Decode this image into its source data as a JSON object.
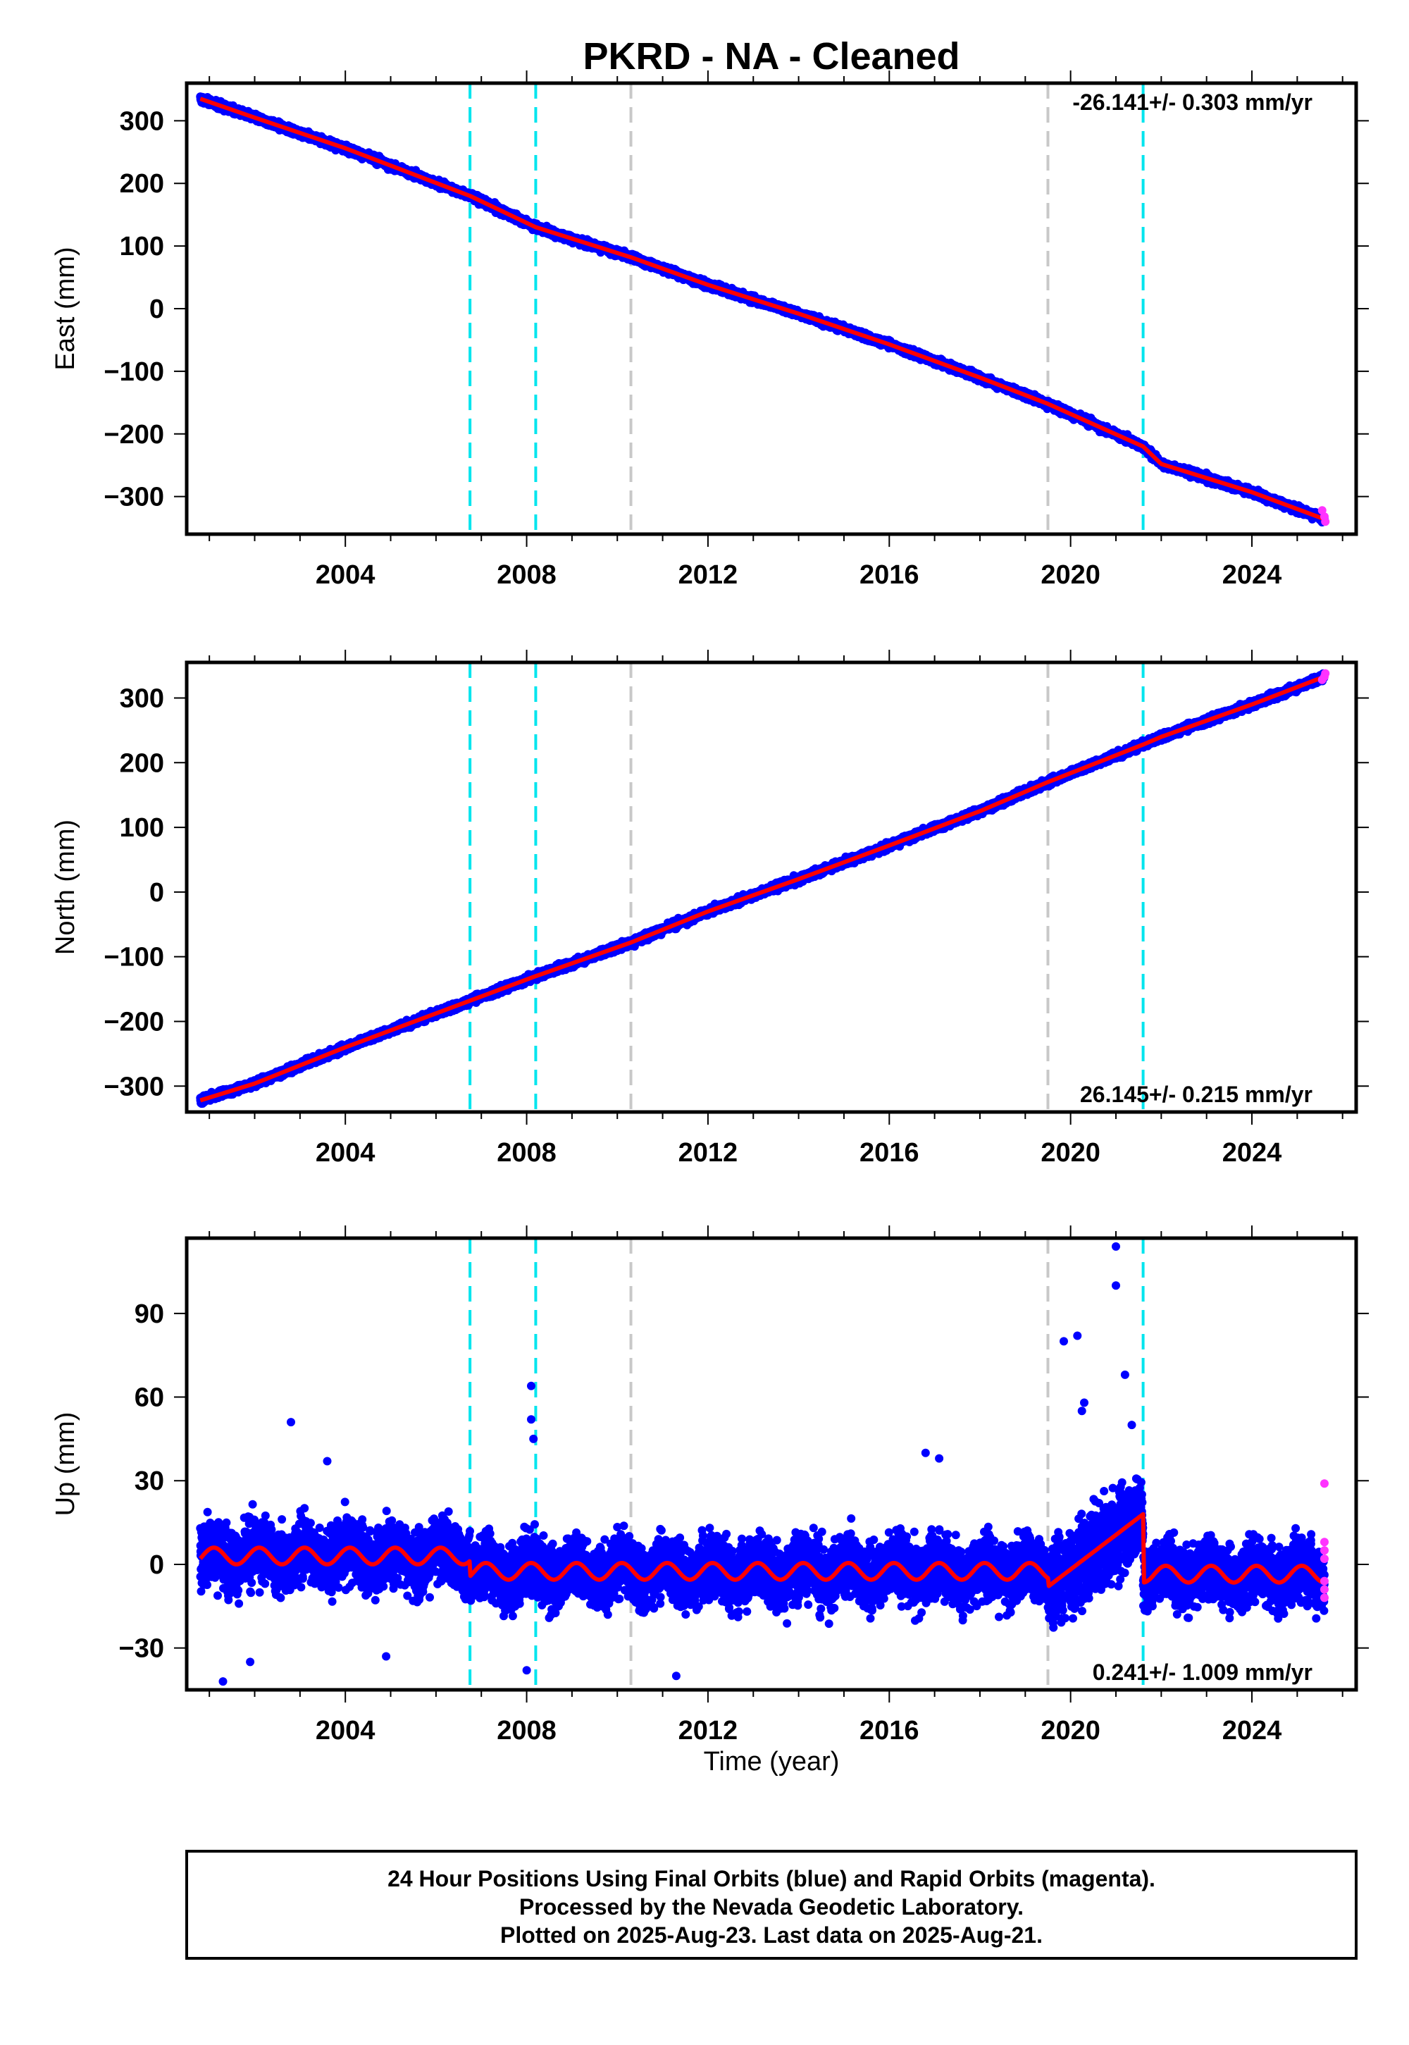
{
  "title": "PKRD  - NA - Cleaned",
  "colors": {
    "final_orbits": "#0000ff",
    "rapid_orbits": "#ff33ff",
    "model": "#ff0000",
    "equipment_change": "#00e5ee",
    "other_event": "#c8c8c8"
  },
  "chart_data": [
    {
      "type": "scatter",
      "ylabel": "East (mm)",
      "xlim": [
        2000.5,
        2026.3
      ],
      "ylim": [
        -360,
        360
      ],
      "x_ticks": [
        2004,
        2008,
        2012,
        2016,
        2020,
        2024
      ],
      "x_tick_labels": [
        "2004",
        "2008",
        "2012",
        "2016",
        "2020",
        "2024"
      ],
      "y_ticks": [
        -300,
        -200,
        -100,
        0,
        100,
        200,
        300
      ],
      "y_tick_labels": [
        "−300",
        "−200",
        "−100",
        "0",
        "100",
        "200",
        "300"
      ],
      "rate_label": "-26.141+/- 0.303 mm/yr",
      "rate_position": "top-right",
      "trend": {
        "start": [
          2000.8,
          335
        ],
        "end": [
          2025.6,
          -336
        ]
      },
      "series": [
        {
          "kind": "model",
          "x": [
            2000.8,
            2002,
            2004,
            2006.75,
            2008.2,
            2010.3,
            2012,
            2014,
            2016,
            2018,
            2019.5,
            2021.6,
            2022,
            2024,
            2025.6
          ],
          "y": [
            335,
            305,
            256,
            180,
            130,
            82,
            38,
            -8,
            -57,
            -110,
            -152,
            -220,
            -248,
            -293,
            -336
          ]
        },
        {
          "kind": "rapid",
          "x": [
            2025.55,
            2025.6,
            2025.62
          ],
          "y": [
            -322,
            -332,
            -340
          ]
        }
      ]
    },
    {
      "type": "scatter",
      "ylabel": "North (mm)",
      "xlim": [
        2000.5,
        2026.3
      ],
      "ylim": [
        -340,
        355
      ],
      "x_ticks": [
        2004,
        2008,
        2012,
        2016,
        2020,
        2024
      ],
      "x_tick_labels": [
        "2004",
        "2008",
        "2012",
        "2016",
        "2020",
        "2024"
      ],
      "y_ticks": [
        -300,
        -200,
        -100,
        0,
        100,
        200,
        300
      ],
      "y_tick_labels": [
        "−300",
        "−200",
        "−100",
        "0",
        "100",
        "200",
        "300"
      ],
      "rate_label": "26.145+/- 0.215 mm/yr",
      "rate_position": "bottom-right",
      "trend": {
        "start": [
          2000.8,
          -322
        ],
        "end": [
          2025.6,
          333
        ]
      },
      "series": [
        {
          "kind": "model",
          "x": [
            2000.8,
            2002,
            2004,
            2006.75,
            2008.2,
            2010.3,
            2012,
            2014,
            2016,
            2018,
            2019.5,
            2021.6,
            2022,
            2024,
            2025.6
          ],
          "y": [
            -322,
            -296,
            -240,
            -168,
            -130,
            -78,
            -30,
            20,
            72,
            125,
            170,
            228,
            240,
            290,
            333
          ]
        },
        {
          "kind": "rapid",
          "x": [
            2025.55,
            2025.6,
            2025.62
          ],
          "y": [
            328,
            333,
            338
          ]
        }
      ]
    },
    {
      "type": "scatter",
      "ylabel": "Up (mm)",
      "xlabel": "Time (year)",
      "xlim": [
        2000.5,
        2026.3
      ],
      "ylim": [
        -45,
        117
      ],
      "x_ticks": [
        2004,
        2008,
        2012,
        2016,
        2020,
        2024
      ],
      "x_tick_labels": [
        "2004",
        "2008",
        "2012",
        "2016",
        "2020",
        "2024"
      ],
      "y_ticks": [
        -30,
        0,
        30,
        60,
        90
      ],
      "y_tick_labels": [
        "−30",
        "0",
        "30",
        "60",
        "90"
      ],
      "rate_label": "0.241+/- 1.009 mm/yr",
      "rate_position": "bottom-right",
      "model_segments": [
        {
          "from": 2000.8,
          "to": 2006.75,
          "offset": 3,
          "amplitude": 3
        },
        {
          "from": 2006.75,
          "to": 2019.5,
          "offset": -2.5,
          "amplitude": 3
        },
        {
          "from": 2019.5,
          "to": 2021.6,
          "offset": 10,
          "amplitude": 4,
          "note": "transient"
        },
        {
          "from": 2021.6,
          "to": 2025.6,
          "offset": -3.5,
          "amplitude": 3
        }
      ],
      "outliers": [
        [
          2002.8,
          51
        ],
        [
          2008.1,
          64
        ],
        [
          2008.1,
          52
        ],
        [
          2008.15,
          45
        ],
        [
          2019.85,
          80
        ],
        [
          2020.15,
          82
        ],
        [
          2020.3,
          58
        ],
        [
          2020.25,
          55
        ],
        [
          2021.0,
          114
        ],
        [
          2021.0,
          100
        ],
        [
          2021.2,
          68
        ],
        [
          2021.35,
          50
        ],
        [
          2016.8,
          40
        ],
        [
          2017.1,
          38
        ],
        [
          2003.6,
          37
        ],
        [
          2001.3,
          -42
        ],
        [
          2008.0,
          -38
        ],
        [
          2011.3,
          -40
        ],
        [
          2001.9,
          -35
        ],
        [
          2004.9,
          -33
        ]
      ],
      "series": [
        {
          "kind": "rapid",
          "x": [
            2025.6,
            2025.6,
            2025.6,
            2025.6,
            2025.6,
            2025.6,
            2025.6
          ],
          "y": [
            29,
            8,
            5,
            2,
            -6,
            -9,
            -12
          ]
        }
      ]
    }
  ],
  "events": {
    "equipment_change": [
      2006.75,
      2008.2,
      2021.6
    ],
    "other": [
      2010.3,
      2019.5
    ]
  },
  "footer": {
    "line1": "24 Hour Positions Using Final Orbits (blue) and Rapid Orbits (magenta).",
    "line2": "Processed by the Nevada Geodetic Laboratory.",
    "line3": "Plotted on 2025-Aug-23. Last data on 2025-Aug-21."
  }
}
